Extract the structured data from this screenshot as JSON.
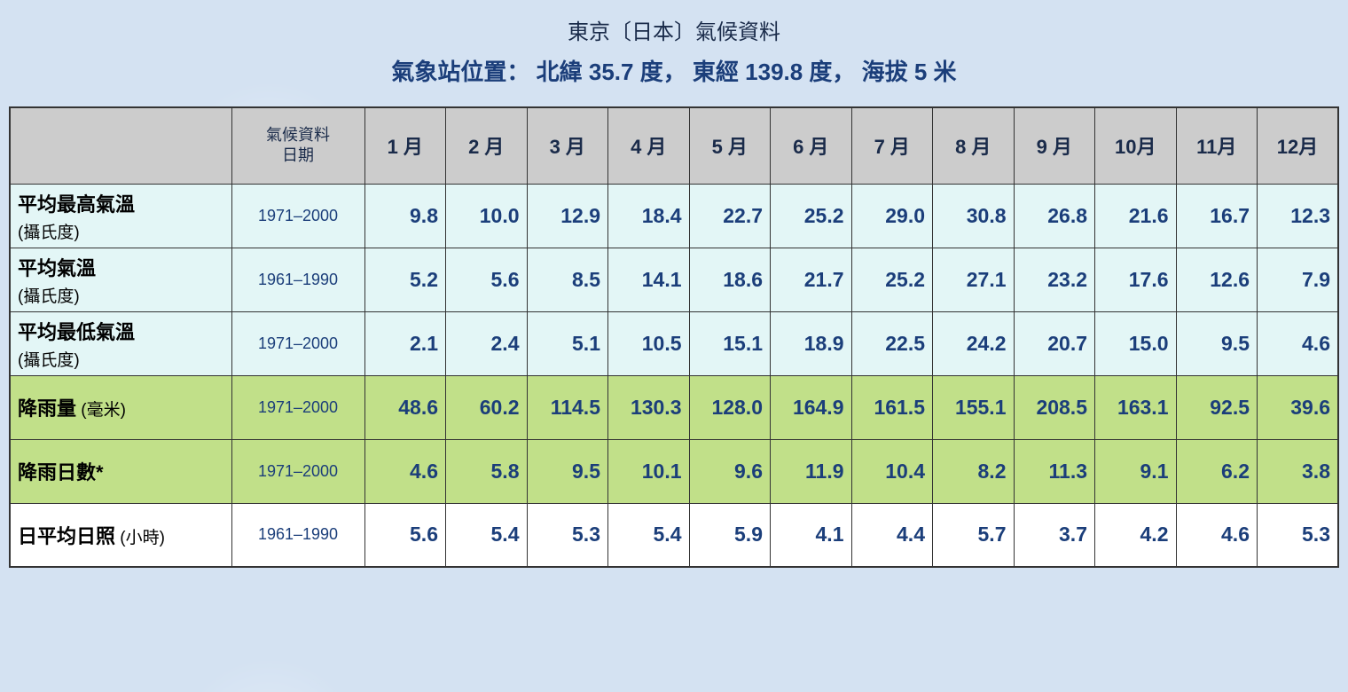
{
  "title": "東京〔日本〕氣候資料",
  "subtitle": "氣象站位置： 北緯 35.7 度， 東經 139.8 度， 海拔 5 米",
  "header": {
    "blank": "",
    "period_label": "氣候資料\n日期",
    "months": [
      "1 月",
      "2 月",
      "3 月",
      "4 月",
      "5 月",
      "6 月",
      "7 月",
      "8 月",
      "9 月",
      "10月",
      "11月",
      "12月"
    ]
  },
  "rows": [
    {
      "id": "avg-high-temp",
      "label_main": "平均最高氣溫",
      "label_unit": "(攝氏度)",
      "label_two_line": true,
      "period": "1971–2000",
      "row_bg": "bg-temp",
      "values": [
        "9.8",
        "10.0",
        "12.9",
        "18.4",
        "22.7",
        "25.2",
        "29.0",
        "30.8",
        "26.8",
        "21.6",
        "16.7",
        "12.3"
      ]
    },
    {
      "id": "avg-temp",
      "label_main": "平均氣溫",
      "label_unit": "(攝氏度)",
      "label_two_line": true,
      "period": "1961–1990",
      "row_bg": "bg-temp",
      "values": [
        "5.2",
        "5.6",
        "8.5",
        "14.1",
        "18.6",
        "21.7",
        "25.2",
        "27.1",
        "23.2",
        "17.6",
        "12.6",
        "7.9"
      ]
    },
    {
      "id": "avg-low-temp",
      "label_main": "平均最低氣溫",
      "label_unit": "(攝氏度)",
      "label_two_line": true,
      "period": "1971–2000",
      "row_bg": "bg-temp",
      "values": [
        "2.1",
        "2.4",
        "5.1",
        "10.5",
        "15.1",
        "18.9",
        "22.5",
        "24.2",
        "20.7",
        "15.0",
        "9.5",
        "4.6"
      ]
    },
    {
      "id": "rainfall",
      "label_main": "降雨量",
      "label_unit": " (毫米)",
      "label_two_line": false,
      "period": "1971–2000",
      "row_bg": "bg-rain",
      "values": [
        "48.6",
        "60.2",
        "114.5",
        "130.3",
        "128.0",
        "164.9",
        "161.5",
        "155.1",
        "208.5",
        "163.1",
        "92.5",
        "39.6"
      ]
    },
    {
      "id": "rain-days",
      "label_main": "降雨日數*",
      "label_unit": "",
      "label_two_line": false,
      "period": "1971–2000",
      "row_bg": "bg-rain",
      "values": [
        "4.6",
        "5.8",
        "9.5",
        "10.1",
        "9.6",
        "11.9",
        "10.4",
        "8.2",
        "11.3",
        "9.1",
        "6.2",
        "3.8"
      ]
    },
    {
      "id": "sunshine",
      "label_main": "日平均日照",
      "label_unit": " (小時)",
      "label_two_line": false,
      "period": "1961–1990",
      "row_bg": "bg-sun",
      "values": [
        "5.6",
        "5.4",
        "5.3",
        "5.4",
        "5.9",
        "4.1",
        "4.4",
        "5.7",
        "3.7",
        "4.2",
        "4.6",
        "5.3"
      ]
    }
  ],
  "colors": {
    "page_bg": "#d4e2f2",
    "header_bg": "#cccccc",
    "temp_row_bg": "#e3f6f6",
    "rain_row_bg": "#c1e089",
    "sun_row_bg": "#ffffff",
    "value_color": "#1b3e7a",
    "border_color": "#333333"
  }
}
